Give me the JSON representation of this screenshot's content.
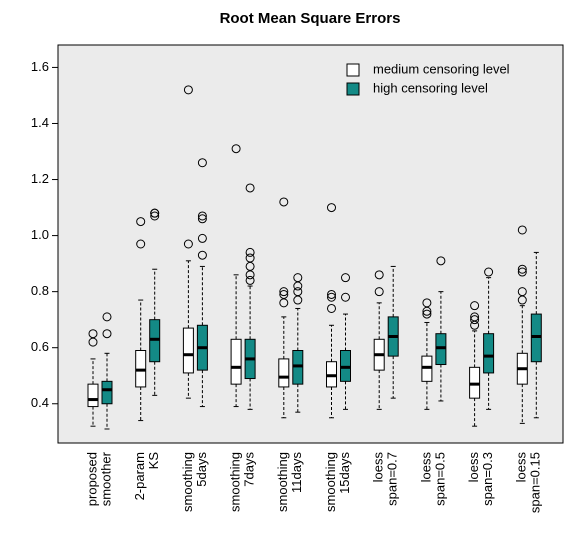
{
  "chart_data": {
    "type": "box",
    "title": "Root Mean Square Errors",
    "categories": [
      [
        "proposed",
        "smoother"
      ],
      [
        "2-param",
        "KS"
      ],
      [
        "smoothing",
        "5days"
      ],
      [
        "smoothing",
        "7days"
      ],
      [
        "smoothing",
        "11days"
      ],
      [
        "smoothing",
        "15days"
      ],
      [
        "loess",
        "span=0.7"
      ],
      [
        "loess",
        "span=0.5"
      ],
      [
        "loess",
        "span=0.3"
      ],
      [
        "loess",
        "span=0.15"
      ]
    ],
    "ylim": [
      0.26,
      1.68
    ],
    "yticks": [
      0.4,
      0.6,
      0.8,
      {
        "value": 1,
        "label": "1.0"
      },
      1.2,
      1.4,
      1.6
    ],
    "legend": "upper right",
    "series": [
      {
        "name": "medium censoring level",
        "color": "#ffffff",
        "boxes": [
          {
            "whislo": 0.32,
            "q1": 0.39,
            "med": 0.415,
            "q3": 0.47,
            "whishi": 0.56,
            "fliers": [
              0.62,
              0.65
            ]
          },
          {
            "whislo": 0.34,
            "q1": 0.46,
            "med": 0.52,
            "q3": 0.59,
            "whishi": 0.77,
            "fliers": [
              0.97,
              1.05
            ]
          },
          {
            "whislo": 0.42,
            "q1": 0.51,
            "med": 0.575,
            "q3": 0.67,
            "whishi": 0.91,
            "fliers": [
              0.97,
              1.52
            ]
          },
          {
            "whislo": 0.39,
            "q1": 0.47,
            "med": 0.53,
            "q3": 0.63,
            "whishi": 0.86,
            "fliers": [
              1.31
            ]
          },
          {
            "whislo": 0.35,
            "q1": 0.46,
            "med": 0.495,
            "q3": 0.56,
            "whishi": 0.71,
            "fliers": [
              0.76,
              0.79,
              0.8,
              1.12
            ]
          },
          {
            "whislo": 0.35,
            "q1": 0.46,
            "med": 0.5,
            "q3": 0.55,
            "whishi": 0.68,
            "fliers": [
              0.74,
              0.78,
              0.79,
              1.1
            ]
          },
          {
            "whislo": 0.38,
            "q1": 0.52,
            "med": 0.575,
            "q3": 0.63,
            "whishi": 0.76,
            "fliers": [
              0.8,
              0.86
            ]
          },
          {
            "whislo": 0.38,
            "q1": 0.48,
            "med": 0.53,
            "q3": 0.57,
            "whishi": 0.69,
            "fliers": [
              0.72,
              0.73,
              0.76
            ]
          },
          {
            "whislo": 0.32,
            "q1": 0.42,
            "med": 0.47,
            "q3": 0.53,
            "whishi": 0.66,
            "fliers": [
              0.68,
              0.7,
              0.71,
              0.75
            ]
          },
          {
            "whislo": 0.33,
            "q1": 0.47,
            "med": 0.525,
            "q3": 0.58,
            "whishi": 0.75,
            "fliers": [
              0.77,
              0.8,
              0.87,
              0.88,
              1.02
            ]
          }
        ]
      },
      {
        "name": "high censoring level",
        "color": "#138a86",
        "boxes": [
          {
            "whislo": 0.31,
            "q1": 0.4,
            "med": 0.45,
            "q3": 0.48,
            "whishi": 0.58,
            "fliers": [
              0.65,
              0.71
            ]
          },
          {
            "whislo": 0.43,
            "q1": 0.55,
            "med": 0.63,
            "q3": 0.7,
            "whishi": 0.88,
            "fliers": [
              1.07,
              1.08,
              1.08
            ]
          },
          {
            "whislo": 0.39,
            "q1": 0.52,
            "med": 0.6,
            "q3": 0.68,
            "whishi": 0.89,
            "fliers": [
              0.93,
              0.99,
              1.06,
              1.07,
              1.26
            ]
          },
          {
            "whislo": 0.38,
            "q1": 0.49,
            "med": 0.56,
            "q3": 0.63,
            "whishi": 0.82,
            "fliers": [
              0.84,
              0.86,
              0.89,
              0.92,
              0.94,
              1.17
            ]
          },
          {
            "whislo": 0.37,
            "q1": 0.47,
            "med": 0.535,
            "q3": 0.59,
            "whishi": 0.74,
            "fliers": [
              0.77,
              0.8,
              0.82,
              0.85
            ]
          },
          {
            "whislo": 0.38,
            "q1": 0.48,
            "med": 0.53,
            "q3": 0.59,
            "whishi": 0.72,
            "fliers": [
              0.78,
              0.85
            ]
          },
          {
            "whislo": 0.42,
            "q1": 0.57,
            "med": 0.64,
            "q3": 0.71,
            "whishi": 0.89,
            "fliers": []
          },
          {
            "whislo": 0.41,
            "q1": 0.54,
            "med": 0.6,
            "q3": 0.65,
            "whishi": 0.8,
            "fliers": [
              0.91
            ]
          },
          {
            "whislo": 0.38,
            "q1": 0.51,
            "med": 0.57,
            "q3": 0.65,
            "whishi": 0.85,
            "fliers": [
              0.87
            ]
          },
          {
            "whislo": 0.35,
            "q1": 0.55,
            "med": 0.64,
            "q3": 0.72,
            "whishi": 0.94,
            "fliers": []
          }
        ]
      }
    ]
  }
}
